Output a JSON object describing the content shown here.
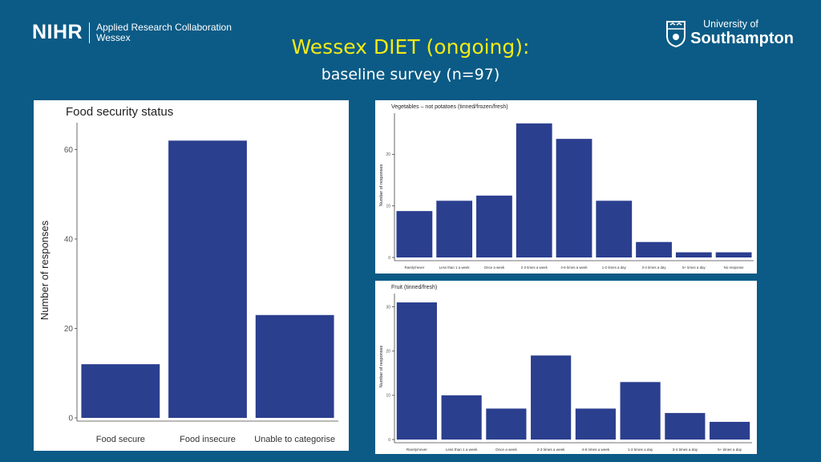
{
  "header": {
    "nihr_logo": "NIHR",
    "arc_line1": "Applied Research Collaboration",
    "arc_line2": "Wessex",
    "uni_line1": "University of",
    "uni_line2": "Southampton",
    "title": "Wessex DIET (ongoing):",
    "subtitle": "baseline survey (n=97)"
  },
  "colors": {
    "bar": "#2b3f8f",
    "background": "#0b5b86",
    "title": "#f4ea14"
  },
  "chart_data": [
    {
      "type": "bar",
      "title": "Food security status",
      "ylabel": "Number of responses",
      "xlabel": "",
      "categories": [
        "Food secure",
        "Food insecure",
        "Unable to categorise"
      ],
      "values": [
        12,
        62,
        23
      ],
      "ylim": [
        0,
        66
      ],
      "yticks": [
        0,
        20,
        40,
        60
      ],
      "grid": false
    },
    {
      "type": "bar",
      "title": "Vegetables – not potatoes (tinned/frozen/fresh)",
      "ylabel": "Number of responses",
      "xlabel": "",
      "categories": [
        "Rarely/never",
        "Less than 1 a week",
        "Once a week",
        "2-3 times a week",
        "4-6 times a week",
        "1-2 times a day",
        "3-4 times a day",
        "5+ times a day",
        "No response"
      ],
      "values": [
        9,
        11,
        12,
        26,
        23,
        11,
        3,
        1,
        1
      ],
      "ylim": [
        0,
        28
      ],
      "yticks": [
        0,
        10,
        20
      ],
      "grid": false
    },
    {
      "type": "bar",
      "title": "Fruit (tinned/fresh)",
      "ylabel": "Number of responses",
      "xlabel": "",
      "categories": [
        "Rarely/never",
        "Less than 1 a week",
        "Once a week",
        "2-3 times a week",
        "4-6 times a week",
        "1-2 times a day",
        "3-4 times a day",
        "5+ times a day"
      ],
      "values": [
        31,
        10,
        7,
        19,
        7,
        13,
        6,
        4
      ],
      "ylim": [
        0,
        33
      ],
      "yticks": [
        0,
        10,
        20,
        30
      ],
      "grid": false
    }
  ]
}
